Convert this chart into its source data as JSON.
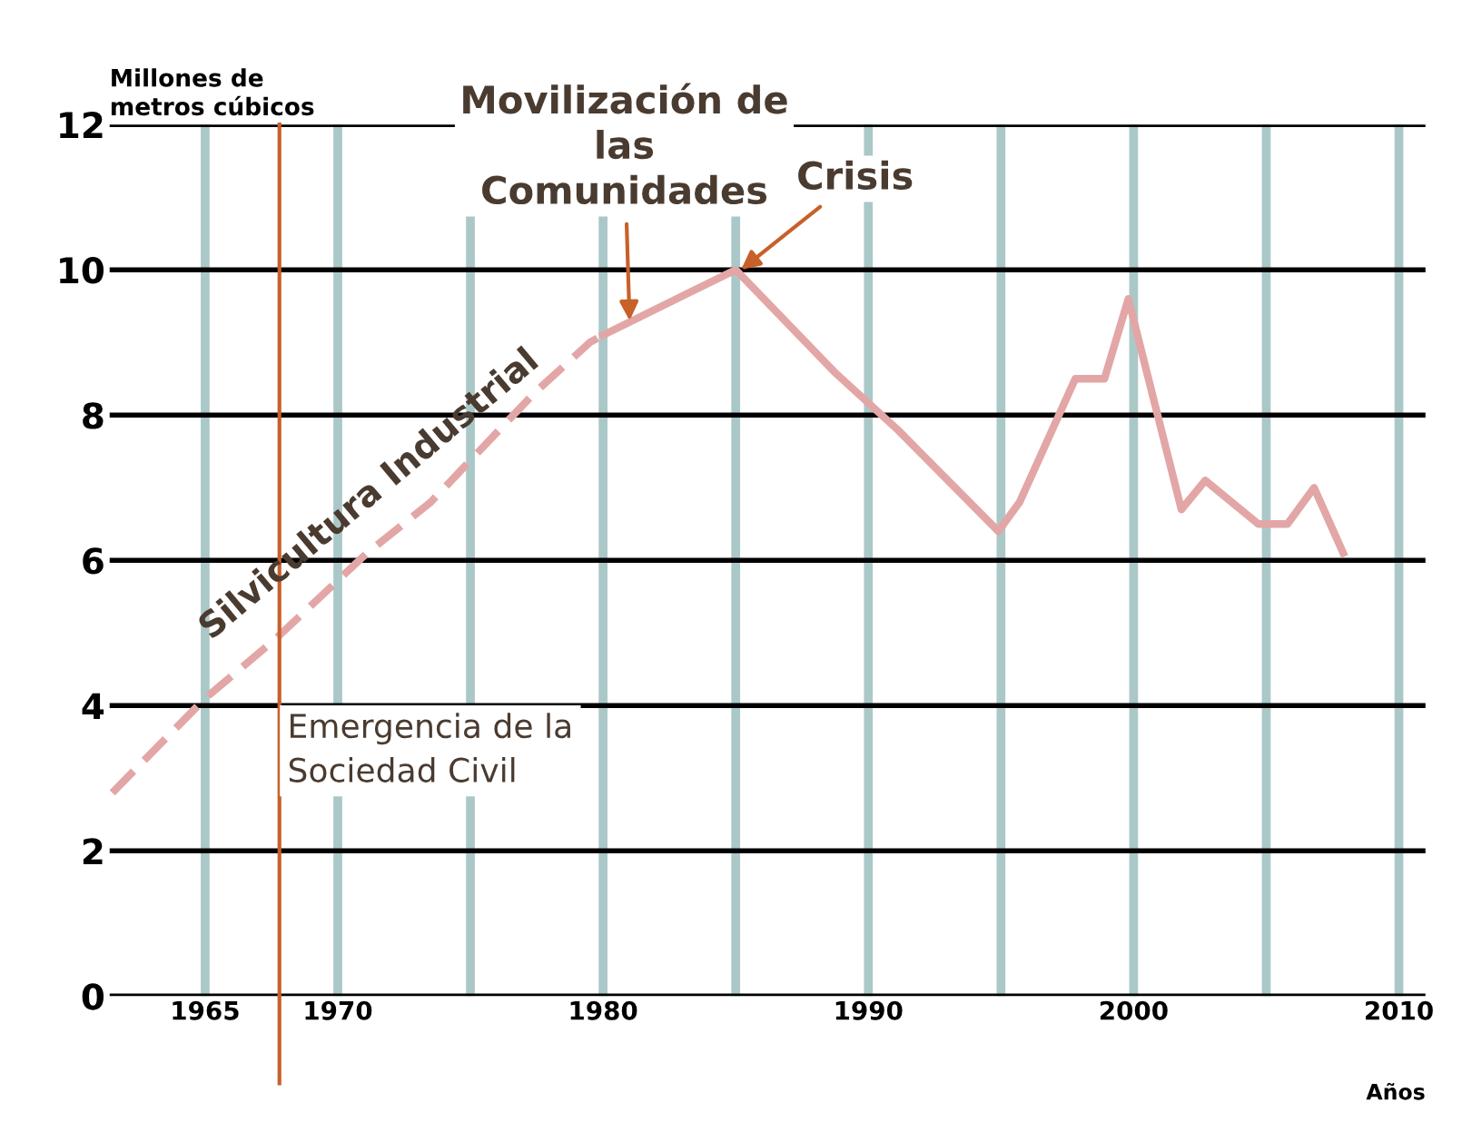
{
  "chart_data": {
    "type": "line",
    "ylabel": "Millones de metros cúbicos",
    "xlabel": "Años",
    "series": [
      {
        "color": "#e3a6a6",
        "line_style": "dashed",
        "x": [
          1961.5,
          1965,
          1967.6,
          1971.1,
          1973.5,
          1977.4,
          1979.5,
          1980
        ],
        "values": [
          2.8,
          4.1,
          4.9,
          6.1,
          6.8,
          8.3,
          9.0,
          9.1
        ]
      },
      {
        "color": "#e3a6a6",
        "line_style": "solid",
        "x": [
          1980,
          1985,
          1988.7,
          1991.1,
          1994.9,
          1995.7,
          1997.8,
          1998.9,
          1999.8,
          2001.8,
          2002.7,
          2004.7,
          2005.8,
          2006.8,
          2007.9
        ],
        "values": [
          9.1,
          10.0,
          8.6,
          7.8,
          6.4,
          6.8,
          8.5,
          8.5,
          9.6,
          6.7,
          7.1,
          6.5,
          6.5,
          7.0,
          6.1
        ]
      }
    ],
    "xlim": [
      1961.4,
      2011
    ],
    "xticks": [
      1965,
      1970,
      {
        "value": 1975,
        "label": null
      },
      1980,
      {
        "value": 1985,
        "label": null
      },
      1990,
      {
        "value": 1995,
        "label": null
      },
      2000,
      {
        "value": 2005,
        "label": null
      },
      2010
    ],
    "ylim": [
      0,
      12
    ],
    "yticks": [
      0,
      2,
      4,
      6,
      8,
      10,
      12
    ],
    "grid": true,
    "marker": "none",
    "ref_lines": [
      {
        "axis": "x",
        "value": 1967.8,
        "label": "Emergencia de la Sociedad Civil",
        "color": "#c8602a",
        "line_style": "solid"
      }
    ],
    "annotations": [
      {
        "text": "Movilización de las Comunidades",
        "x": 1981,
        "y": 9.3
      },
      {
        "text": "Crisis",
        "x": 1985.2,
        "y": 10.0
      },
      "Silvicultura Industrial"
    ]
  }
}
